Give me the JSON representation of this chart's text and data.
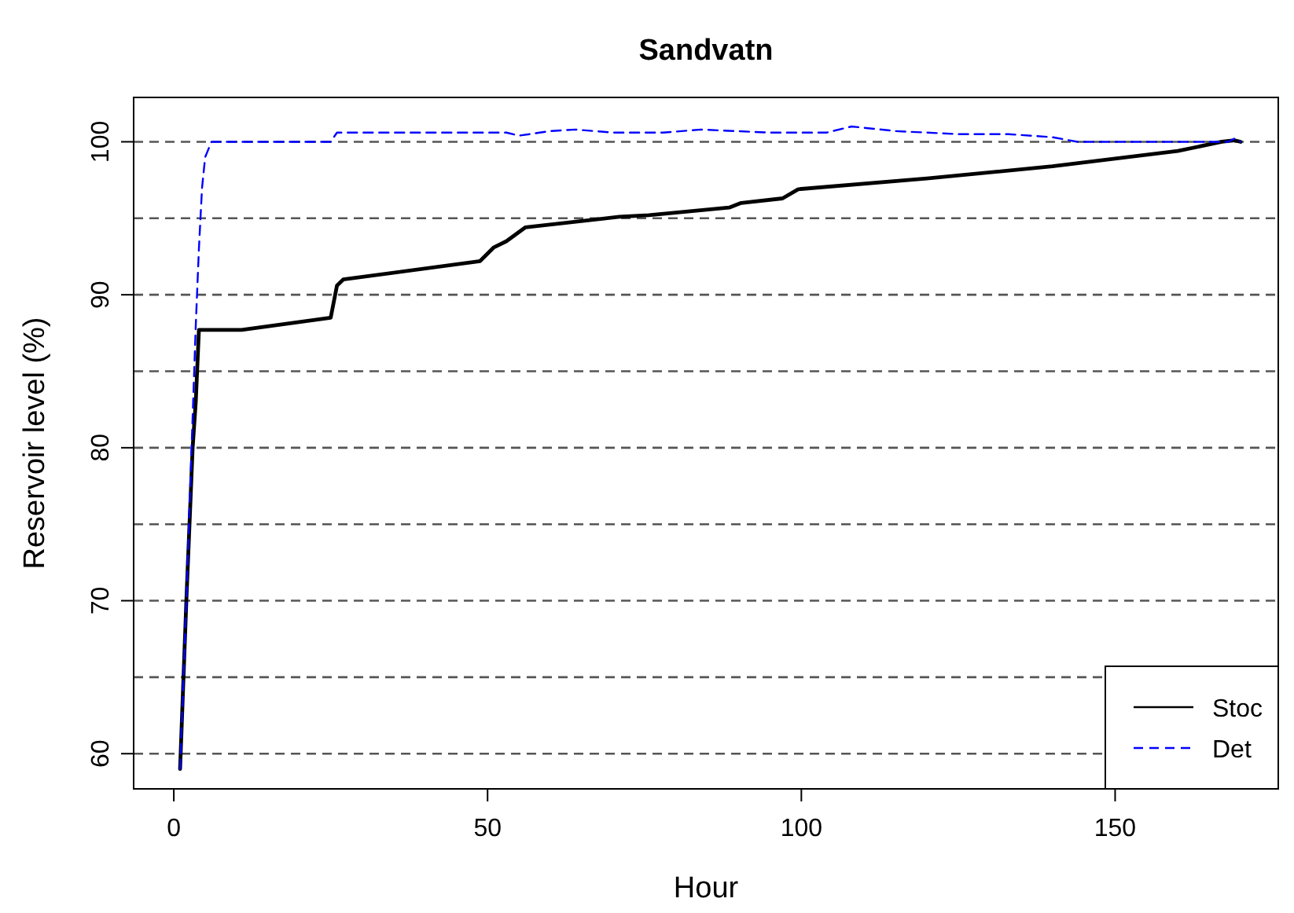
{
  "chart_data": {
    "type": "line",
    "title": "Sandvatn",
    "xlabel": "Hour",
    "ylabel": "Reservoir level (%)",
    "xlim": [
      -6.4,
      176
    ],
    "ylim": [
      57.7,
      102.9
    ],
    "xticks": [
      0,
      50,
      100,
      150
    ],
    "yticks": [
      60,
      70,
      80,
      90,
      100
    ],
    "series": [
      {
        "name": "Stoc",
        "color": "#000000",
        "line_style": "solid",
        "x": [
          1,
          2,
          3,
          3.5,
          4,
          6,
          10.8,
          25,
          26,
          27,
          48.8,
          51,
          53,
          56,
          71,
          75.7,
          88.5,
          90.4,
          97,
          99.5,
          120,
          140,
          160,
          167,
          169,
          170
        ],
        "values": [
          59,
          70,
          80,
          83,
          87.7,
          87.7,
          87.7,
          88.5,
          90.6,
          91,
          92.2,
          93.1,
          93.5,
          94.4,
          95.1,
          95.2,
          95.7,
          96,
          96.3,
          96.9,
          97.6,
          98.4,
          99.4,
          100,
          100.1,
          100
        ]
      },
      {
        "name": "Det",
        "color": "#0000ff",
        "line_style": "dashed",
        "x": [
          1,
          2,
          3,
          3.5,
          4,
          4.5,
          5,
          6,
          25,
          26,
          40,
          53,
          55,
          60,
          64,
          70,
          78,
          84,
          95,
          104,
          108,
          115,
          125,
          133,
          140,
          144,
          160,
          168,
          169,
          170
        ],
        "values": [
          59,
          70,
          82,
          88,
          93,
          97,
          99,
          100,
          100,
          100.6,
          100.6,
          100.6,
          100.4,
          100.7,
          100.8,
          100.6,
          100.6,
          100.8,
          100.6,
          100.6,
          101,
          100.7,
          100.5,
          100.5,
          100.3,
          100,
          100,
          100,
          100.2,
          100
        ]
      }
    ],
    "ref_lines": [
      {
        "axis": "y",
        "value": 60,
        "line_style": "dashed",
        "color": "#555555"
      },
      {
        "axis": "y",
        "value": 65,
        "line_style": "dashed",
        "color": "#555555"
      },
      {
        "axis": "y",
        "value": 70,
        "line_style": "dashed",
        "color": "#555555"
      },
      {
        "axis": "y",
        "value": 75,
        "line_style": "dashed",
        "color": "#555555"
      },
      {
        "axis": "y",
        "value": 80,
        "line_style": "dashed",
        "color": "#555555"
      },
      {
        "axis": "y",
        "value": 85,
        "line_style": "dashed",
        "color": "#555555"
      },
      {
        "axis": "y",
        "value": 90,
        "line_style": "dashed",
        "color": "#555555"
      },
      {
        "axis": "y",
        "value": 95,
        "line_style": "dashed",
        "color": "#555555"
      },
      {
        "axis": "y",
        "value": 100,
        "line_style": "dashed",
        "color": "#555555"
      }
    ],
    "legend": "bottom right"
  }
}
